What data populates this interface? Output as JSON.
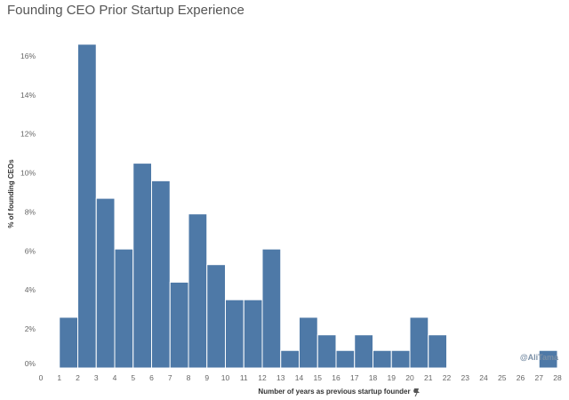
{
  "chart_data": {
    "type": "bar",
    "title": "Founding CEO Prior Startup Experience",
    "xlabel": "Number of years as previous startup founder",
    "ylabel": "% of founding CEOs",
    "x_ticks": [
      0,
      1,
      2,
      3,
      4,
      5,
      6,
      7,
      8,
      9,
      10,
      11,
      12,
      13,
      14,
      15,
      16,
      17,
      18,
      19,
      20,
      21,
      22,
      23,
      24,
      25,
      26,
      27,
      28
    ],
    "y_ticks": [
      "0%",
      "2%",
      "4%",
      "6%",
      "8%",
      "10%",
      "12%",
      "14%",
      "16%"
    ],
    "xlim": [
      0,
      28
    ],
    "ylim": [
      0,
      17.5
    ],
    "bars": [
      {
        "x0": 1,
        "x1": 2,
        "value": 2.6
      },
      {
        "x0": 2,
        "x1": 3,
        "value": 16.6
      },
      {
        "x0": 3,
        "x1": 4,
        "value": 8.7
      },
      {
        "x0": 4,
        "x1": 5,
        "value": 6.1
      },
      {
        "x0": 5,
        "x1": 6,
        "value": 10.5
      },
      {
        "x0": 6,
        "x1": 7,
        "value": 9.6
      },
      {
        "x0": 7,
        "x1": 8,
        "value": 4.4
      },
      {
        "x0": 8,
        "x1": 9,
        "value": 7.9
      },
      {
        "x0": 9,
        "x1": 10,
        "value": 5.3
      },
      {
        "x0": 10,
        "x1": 11,
        "value": 3.5
      },
      {
        "x0": 11,
        "x1": 12,
        "value": 3.5
      },
      {
        "x0": 12,
        "x1": 13,
        "value": 6.1
      },
      {
        "x0": 13,
        "x1": 14,
        "value": 0.9
      },
      {
        "x0": 14,
        "x1": 15,
        "value": 2.6
      },
      {
        "x0": 15,
        "x1": 16,
        "value": 1.7
      },
      {
        "x0": 16,
        "x1": 17,
        "value": 0.9
      },
      {
        "x0": 17,
        "x1": 18,
        "value": 1.7
      },
      {
        "x0": 18,
        "x1": 19,
        "value": 0.9
      },
      {
        "x0": 19,
        "x1": 20,
        "value": 0.9
      },
      {
        "x0": 20,
        "x1": 21,
        "value": 2.6
      },
      {
        "x0": 21,
        "x1": 22,
        "value": 1.7
      },
      {
        "x0": 27,
        "x1": 28,
        "value": 0.9
      }
    ],
    "bar_color": "#4e79a7",
    "grid": false,
    "legend": "none"
  },
  "watermark": "@AliTama",
  "pin_icon": "pin-icon"
}
